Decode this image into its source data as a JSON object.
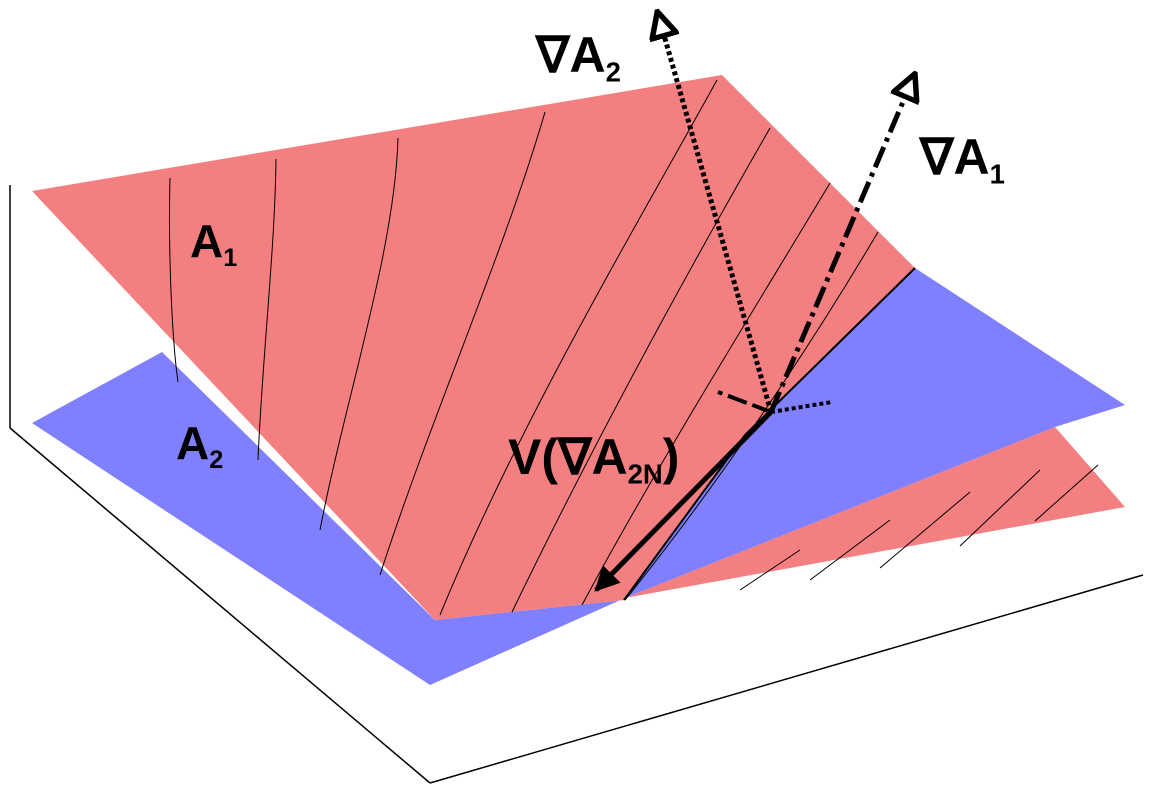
{
  "labels": {
    "surface_a1": {
      "main": "A",
      "sub": "1"
    },
    "surface_a2": {
      "main": "A",
      "sub": "2"
    },
    "gradient_a2": {
      "main": "∇A",
      "sub": "2"
    },
    "gradient_a1": {
      "main": "∇A",
      "sub": "1"
    },
    "projection": {
      "pre": "V(∇A",
      "sub": "2N",
      "post": ")"
    }
  },
  "colors": {
    "surface_a1": "#f47f80",
    "surface_a2": "#8080ff",
    "contour": "#000000",
    "axis": "#000000"
  }
}
